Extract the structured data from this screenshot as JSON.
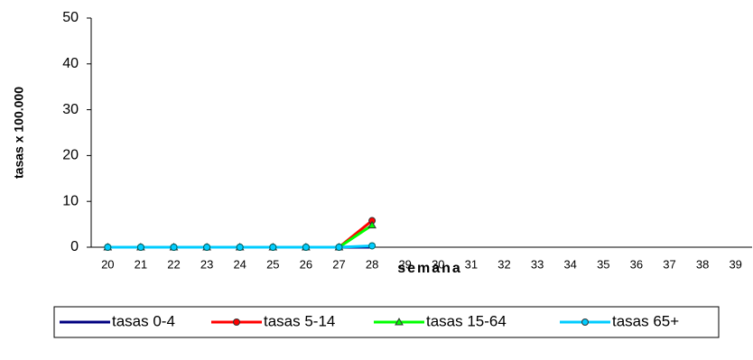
{
  "chart_data": {
    "type": "line",
    "x_label": "semana",
    "y_label": "tasas x 100.000",
    "categories": [
      "20",
      "21",
      "22",
      "23",
      "24",
      "25",
      "26",
      "27",
      "28",
      "29",
      "30",
      "31",
      "32",
      "33",
      "34",
      "35",
      "36",
      "37",
      "38",
      "39"
    ],
    "series": [
      {
        "name": "tasas 0-4",
        "color": "#000080",
        "marker": "none",
        "values": [
          0,
          0,
          0,
          0,
          0,
          0,
          0,
          0,
          0,
          null,
          null,
          null,
          null,
          null,
          null,
          null,
          null,
          null,
          null,
          null
        ]
      },
      {
        "name": "tasas 5-14",
        "color": "#ff0000",
        "marker": "circle",
        "values": [
          0,
          0,
          0,
          0,
          0,
          0,
          0,
          0,
          5.8,
          null,
          null,
          null,
          null,
          null,
          null,
          null,
          null,
          null,
          null,
          null
        ]
      },
      {
        "name": "tasas 15-64",
        "color": "#00ff00",
        "marker": "triangle",
        "values": [
          0,
          0,
          0,
          0,
          0,
          0,
          0,
          0,
          4.8,
          null,
          null,
          null,
          null,
          null,
          null,
          null,
          null,
          null,
          null,
          null
        ]
      },
      {
        "name": "tasas 65+",
        "color": "#00ccff",
        "marker": "circle",
        "values": [
          0,
          0,
          0,
          0,
          0,
          0,
          0,
          0,
          0.3,
          null,
          null,
          null,
          null,
          null,
          null,
          null,
          null,
          null,
          null,
          null
        ]
      }
    ],
    "ylim": [
      0,
      50
    ],
    "yticks": [
      0,
      10,
      20,
      30,
      40,
      50
    ],
    "grid": false
  }
}
